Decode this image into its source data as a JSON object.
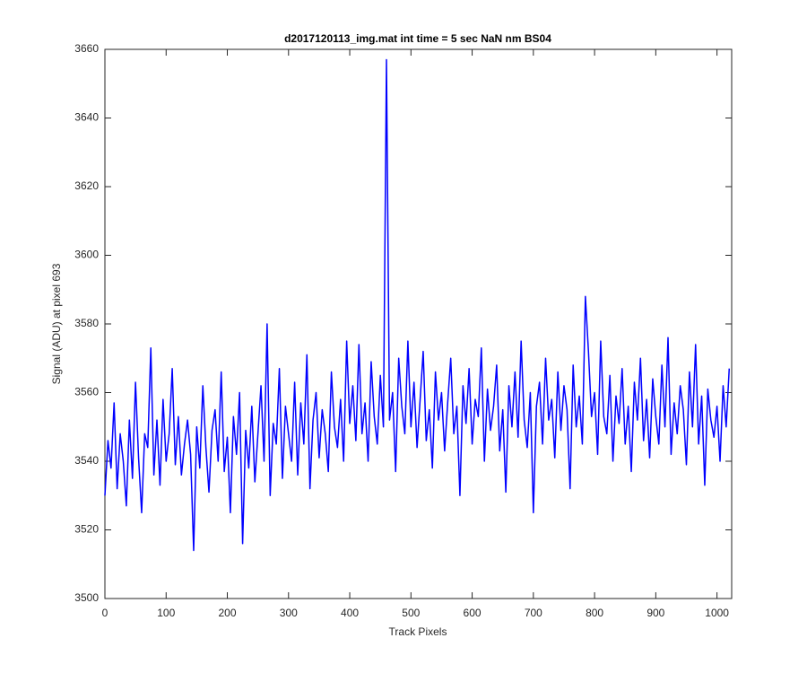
{
  "chart_data": {
    "type": "line",
    "title": "d2017120113_img.mat int time = 5 sec  NaN nm BS04",
    "xlabel": "Track Pixels",
    "ylabel": "Signal (ADU) at pixel 693",
    "xlim": [
      0,
      1024
    ],
    "ylim": [
      3500,
      3660
    ],
    "xticks": [
      0,
      100,
      200,
      300,
      400,
      500,
      600,
      700,
      800,
      900,
      1000
    ],
    "yticks": [
      3500,
      3520,
      3540,
      3560,
      3580,
      3600,
      3620,
      3640,
      3660
    ],
    "grid": false,
    "series": [
      {
        "color": "#0000ff",
        "x": [
          0,
          5,
          10,
          15,
          20,
          25,
          30,
          35,
          40,
          45,
          50,
          55,
          60,
          65,
          70,
          75,
          80,
          85,
          90,
          95,
          100,
          105,
          110,
          115,
          120,
          125,
          130,
          135,
          140,
          145,
          150,
          155,
          160,
          165,
          170,
          175,
          180,
          185,
          190,
          195,
          200,
          205,
          210,
          215,
          220,
          225,
          230,
          235,
          240,
          245,
          250,
          255,
          260,
          265,
          270,
          275,
          280,
          285,
          290,
          295,
          300,
          305,
          310,
          315,
          320,
          325,
          330,
          335,
          340,
          345,
          350,
          355,
          360,
          365,
          370,
          375,
          380,
          385,
          390,
          395,
          400,
          405,
          410,
          415,
          420,
          425,
          430,
          435,
          440,
          445,
          450,
          455,
          460,
          465,
          470,
          475,
          480,
          485,
          490,
          495,
          500,
          505,
          510,
          515,
          520,
          525,
          530,
          535,
          540,
          545,
          550,
          555,
          560,
          565,
          570,
          575,
          580,
          585,
          590,
          595,
          600,
          605,
          610,
          615,
          620,
          625,
          630,
          635,
          640,
          645,
          650,
          655,
          660,
          665,
          670,
          675,
          680,
          685,
          690,
          695,
          700,
          705,
          710,
          715,
          720,
          725,
          730,
          735,
          740,
          745,
          750,
          755,
          760,
          765,
          770,
          775,
          780,
          785,
          790,
          795,
          800,
          805,
          810,
          815,
          820,
          825,
          830,
          835,
          840,
          845,
          850,
          855,
          860,
          865,
          870,
          875,
          880,
          885,
          890,
          895,
          900,
          905,
          910,
          915,
          920,
          925,
          930,
          935,
          940,
          945,
          950,
          955,
          960,
          965,
          970,
          975,
          980,
          985,
          990,
          995,
          1000,
          1005,
          1010,
          1015,
          1020
        ],
        "values": [
          3530,
          3546,
          3538,
          3557,
          3532,
          3548,
          3540,
          3527,
          3552,
          3535,
          3563,
          3541,
          3525,
          3548,
          3544,
          3573,
          3536,
          3552,
          3533,
          3558,
          3540,
          3548,
          3567,
          3539,
          3553,
          3536,
          3545,
          3552,
          3542,
          3514,
          3550,
          3538,
          3562,
          3544,
          3531,
          3549,
          3555,
          3540,
          3566,
          3537,
          3547,
          3525,
          3553,
          3542,
          3560,
          3516,
          3549,
          3538,
          3556,
          3534,
          3548,
          3562,
          3540,
          3580,
          3530,
          3551,
          3545,
          3567,
          3535,
          3556,
          3548,
          3540,
          3563,
          3536,
          3557,
          3545,
          3571,
          3532,
          3552,
          3560,
          3541,
          3555,
          3548,
          3537,
          3566,
          3550,
          3544,
          3558,
          3540,
          3575,
          3551,
          3562,
          3546,
          3574,
          3548,
          3557,
          3540,
          3569,
          3553,
          3545,
          3565,
          3550,
          3657,
          3552,
          3560,
          3537,
          3570,
          3556,
          3548,
          3575,
          3550,
          3563,
          3544,
          3558,
          3572,
          3546,
          3555,
          3538,
          3566,
          3552,
          3560,
          3543,
          3557,
          3570,
          3548,
          3556,
          3530,
          3562,
          3551,
          3567,
          3545,
          3558,
          3553,
          3573,
          3540,
          3561,
          3549,
          3556,
          3568,
          3543,
          3555,
          3531,
          3562,
          3550,
          3566,
          3547,
          3575,
          3552,
          3544,
          3560,
          3525,
          3556,
          3563,
          3545,
          3570,
          3552,
          3558,
          3541,
          3566,
          3549,
          3562,
          3555,
          3532,
          3568,
          3550,
          3559,
          3545,
          3588,
          3572,
          3553,
          3560,
          3542,
          3575,
          3553,
          3548,
          3565,
          3540,
          3559,
          3551,
          3567,
          3545,
          3556,
          3537,
          3563,
          3552,
          3570,
          3546,
          3558,
          3541,
          3564,
          3553,
          3545,
          3568,
          3550,
          3576,
          3542,
          3557,
          3548,
          3562,
          3555,
          3539,
          3566,
          3550,
          3574,
          3545,
          3559,
          3533,
          3561,
          3552,
          3547,
          3556,
          3540,
          3562,
          3550,
          3567
        ]
      }
    ]
  }
}
